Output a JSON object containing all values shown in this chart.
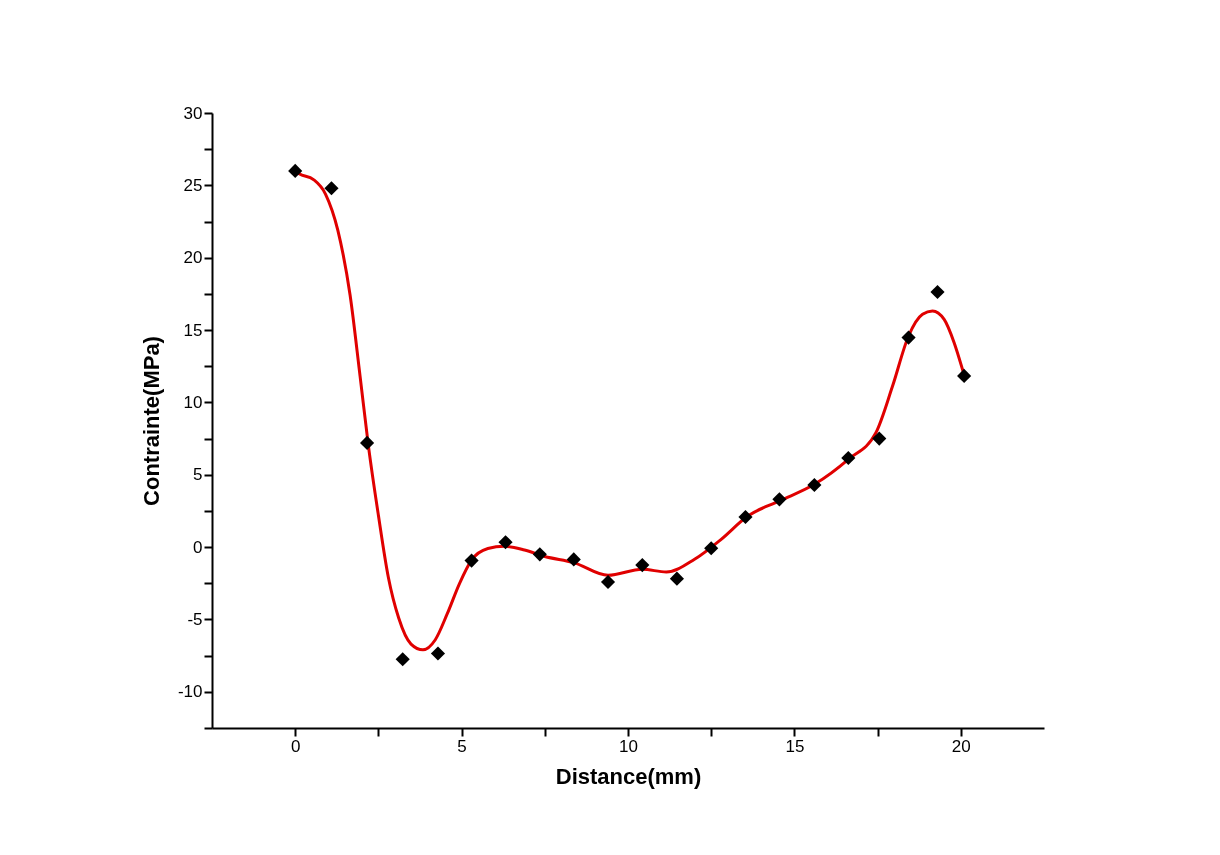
{
  "chart_data": {
    "type": "scatter",
    "xlabel": "Distance(mm)",
    "ylabel": "Contrainte(MPa)",
    "xlim": [
      -2.5,
      22.5
    ],
    "ylim": [
      -12.5,
      30
    ],
    "xticks": [
      0,
      {
        "value": 2.5,
        "label": null
      },
      5,
      {
        "value": 7.5,
        "label": null
      },
      10,
      {
        "value": 12.5,
        "label": null
      },
      15,
      {
        "value": 17.5,
        "label": null
      },
      20
    ],
    "yticks": [
      {
        "value": -12.5,
        "label": null
      },
      -10,
      {
        "value": -7.5,
        "label": null
      },
      -5,
      {
        "value": -2.5,
        "label": null
      },
      0,
      {
        "value": 2.5,
        "label": null
      },
      5,
      {
        "value": 7.5,
        "label": null
      },
      10,
      {
        "value": 12.5,
        "label": null
      },
      15,
      {
        "value": 17.5,
        "label": null
      },
      20,
      {
        "value": 22.5,
        "label": null
      },
      25,
      {
        "value": 27.5,
        "label": null
      },
      30
    ],
    "grid": false,
    "series": [
      {
        "type": "line",
        "color": "#e00000",
        "line_style": "solid",
        "marker": "none",
        "x": [
          0,
          0.12,
          0.55,
          0.91,
          1.28,
          1.65,
          1.95,
          2.2,
          2.5,
          2.8,
          3.11,
          3.48,
          3.84,
          4.21,
          4.57,
          4.94,
          5.3,
          5.79,
          6.28,
          6.89,
          7.5,
          8.37,
          9.4,
          10.43,
          11.15,
          12.0,
          12.8,
          13.6,
          14.55,
          15.6,
          16.62,
          17.45,
          17.95,
          18.43,
          18.85,
          19.15,
          19.5,
          19.8,
          20.05,
          20.1
        ],
        "values": [
          26.0,
          25.8,
          25.4,
          24.4,
          21.9,
          17.4,
          11.8,
          7.0,
          2.2,
          -2.1,
          -4.9,
          -6.7,
          -7.1,
          -6.4,
          -4.6,
          -2.5,
          -0.9,
          -0.1,
          0.06,
          -0.2,
          -0.65,
          -1.07,
          -1.95,
          -1.53,
          -1.72,
          -0.84,
          0.54,
          2.15,
          3.19,
          4.34,
          6.07,
          7.91,
          11.13,
          14.59,
          16.09,
          16.32,
          15.74,
          14.13,
          12.29,
          11.9
        ]
      },
      {
        "color": "#000000",
        "marker": "diamond",
        "x": [
          0,
          1.09,
          2.16,
          3.23,
          4.29,
          5.3,
          6.32,
          7.35,
          8.37,
          9.4,
          10.43,
          11.47,
          12.5,
          13.53,
          14.55,
          15.6,
          16.62,
          17.55,
          18.43,
          19.3,
          20.1
        ],
        "values": [
          26.0,
          24.8,
          7.2,
          -7.75,
          -7.35,
          -0.93,
          0.34,
          -0.5,
          -0.85,
          -2.41,
          -1.24,
          -2.18,
          -0.08,
          2.08,
          3.3,
          4.29,
          6.16,
          7.5,
          14.48,
          17.63,
          11.83
        ]
      }
    ]
  }
}
